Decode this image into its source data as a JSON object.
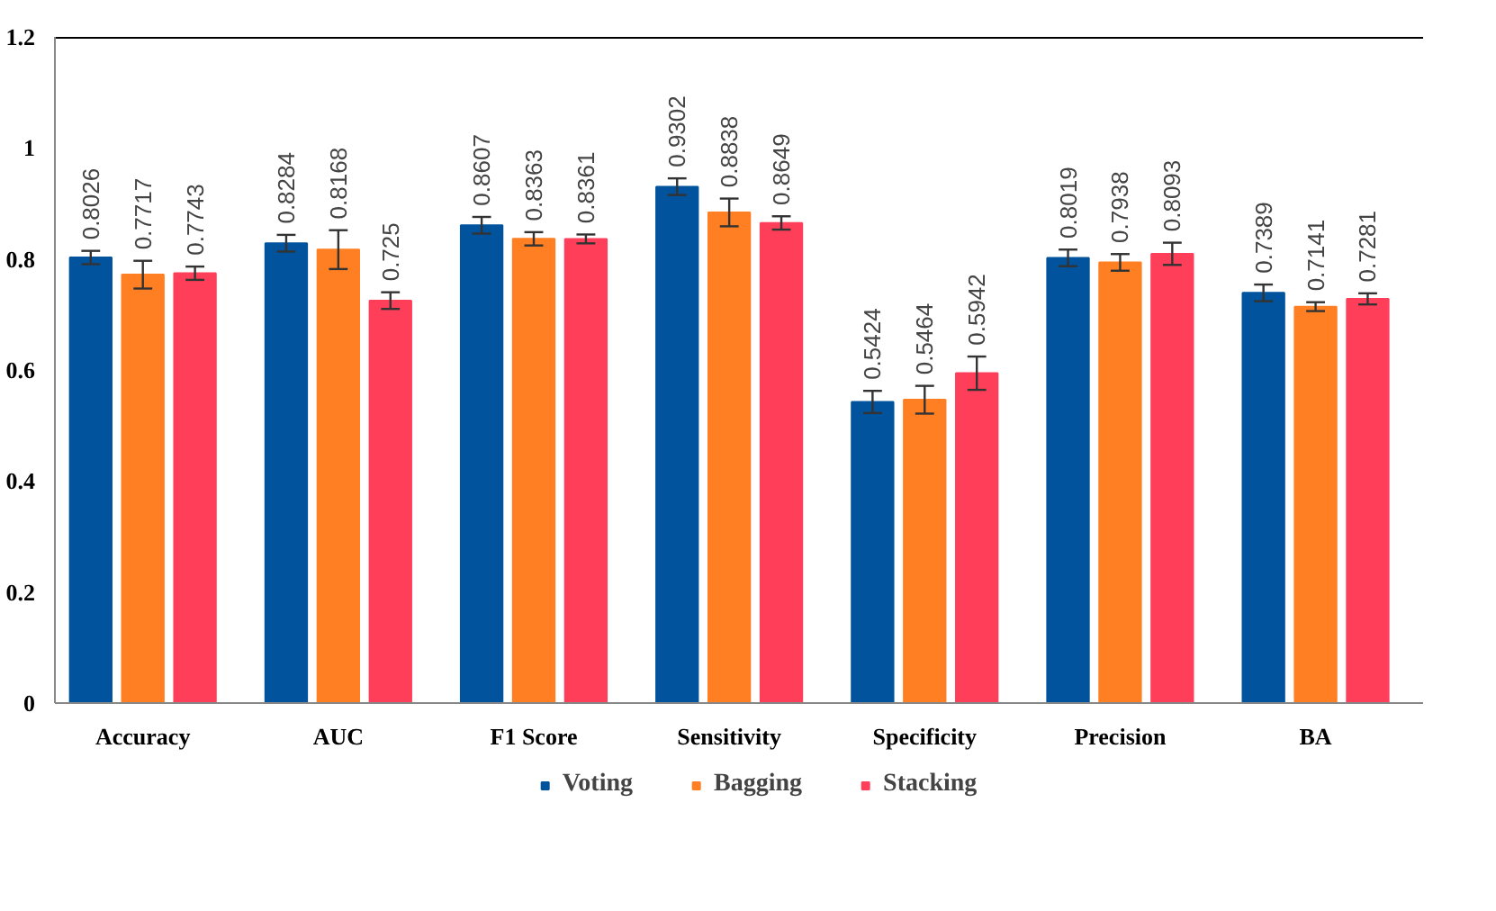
{
  "chart_data": {
    "type": "bar",
    "categories": [
      "Accuracy",
      "AUC",
      "F1 Score",
      "Sensitivity",
      "Specificity",
      "Precision",
      "BA"
    ],
    "series": [
      {
        "name": "Voting",
        "color": "#00539c",
        "values": [
          0.8026,
          0.8284,
          0.8607,
          0.9302,
          0.5424,
          0.8019,
          0.7389
        ],
        "errors": [
          0.012,
          0.015,
          0.015,
          0.015,
          0.02,
          0.015,
          0.015
        ]
      },
      {
        "name": "Bagging",
        "color": "#ff7f22",
        "values": [
          0.7717,
          0.8168,
          0.8363,
          0.8838,
          0.5464,
          0.7938,
          0.7141
        ],
        "errors": [
          0.025,
          0.035,
          0.012,
          0.025,
          0.025,
          0.015,
          0.008
        ]
      },
      {
        "name": "Stacking",
        "color": "#ff3f5a",
        "values": [
          0.7743,
          0.725,
          0.8361,
          0.8649,
          0.5942,
          0.8093,
          0.7281
        ],
        "errors": [
          0.012,
          0.015,
          0.008,
          0.012,
          0.03,
          0.02,
          0.01
        ]
      }
    ],
    "ylim": [
      0,
      1.2
    ],
    "yticks": [
      0,
      0.2,
      0.4,
      0.6,
      0.8,
      1,
      1.2
    ],
    "grid": false,
    "legend": "bottom",
    "data_labels": true
  }
}
